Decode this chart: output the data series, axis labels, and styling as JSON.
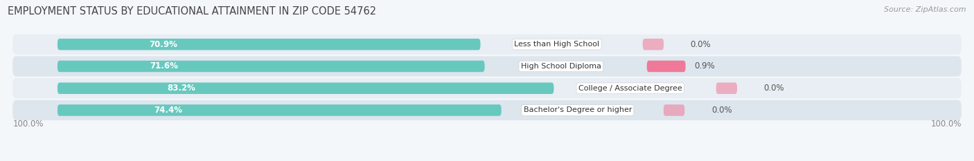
{
  "title": "EMPLOYMENT STATUS BY EDUCATIONAL ATTAINMENT IN ZIP CODE 54762",
  "source": "Source: ZipAtlas.com",
  "categories": [
    "Less than High School",
    "High School Diploma",
    "College / Associate Degree",
    "Bachelor's Degree or higher"
  ],
  "labor_force_pct": [
    70.9,
    71.6,
    83.2,
    74.4
  ],
  "unemployed_pct": [
    0.0,
    0.9,
    0.0,
    0.0
  ],
  "labor_force_color": "#67C8BE",
  "unemployed_color": "#F07898",
  "row_bg_color": "#E8EEF3",
  "row_bg_color2": "#DDE5ED",
  "label_color_lf": "#FFFFFF",
  "label_color_un": "#555555",
  "axis_label_left": "100.0%",
  "axis_label_right": "100.0%",
  "title_fontsize": 10.5,
  "source_fontsize": 8,
  "bar_label_fontsize": 8.5,
  "category_label_fontsize": 8.0,
  "legend_fontsize": 8.5,
  "tick_fontsize": 8.5,
  "fig_bg": "#F4F7FA"
}
